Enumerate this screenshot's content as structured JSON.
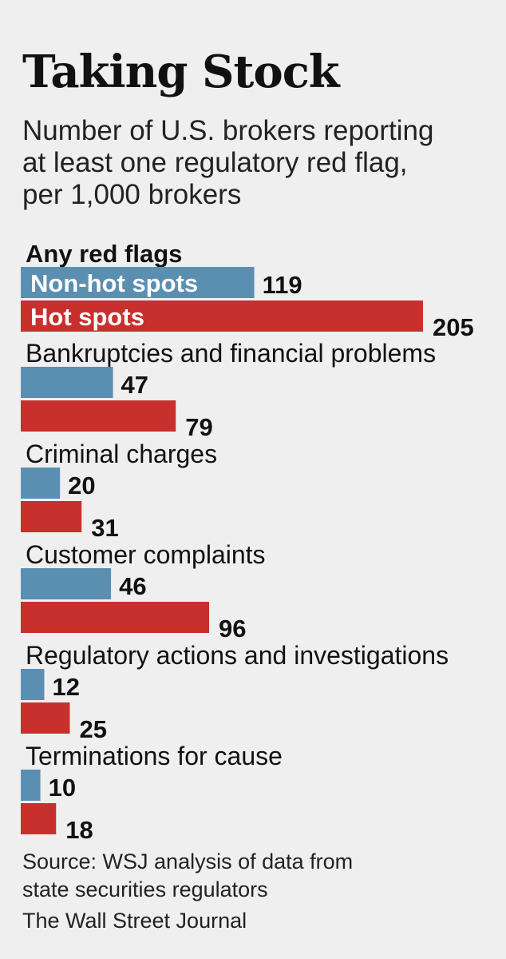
{
  "title": "Taking Stock",
  "subtitle_lines": [
    "Number of U.S. brokers reporting",
    "at least one regulatory red flag,",
    "per 1,000 brokers"
  ],
  "source_lines": [
    "Source: WSJ analysis of data from",
    "state securities regulators"
  ],
  "credit": "The Wall Street Journal",
  "colors": {
    "non_hot_spots": "#5b8fb1",
    "hot_spots": "#c8302d",
    "background": "#efefef"
  },
  "chart_data": {
    "type": "bar",
    "orientation": "horizontal",
    "categories": [
      "Any red flags",
      "Bankruptcies and financial problems",
      "Criminal charges",
      "Customer complaints",
      "Regulatory actions and investigations",
      "Terminations for cause"
    ],
    "series": [
      {
        "name": "Non-hot spots",
        "values": [
          119,
          47,
          20,
          46,
          12,
          10
        ]
      },
      {
        "name": "Hot spots",
        "values": [
          205,
          79,
          31,
          96,
          25,
          18
        ]
      }
    ],
    "legend": "inside first pair of bars",
    "grid": false,
    "xlim": [
      0,
      205
    ]
  }
}
